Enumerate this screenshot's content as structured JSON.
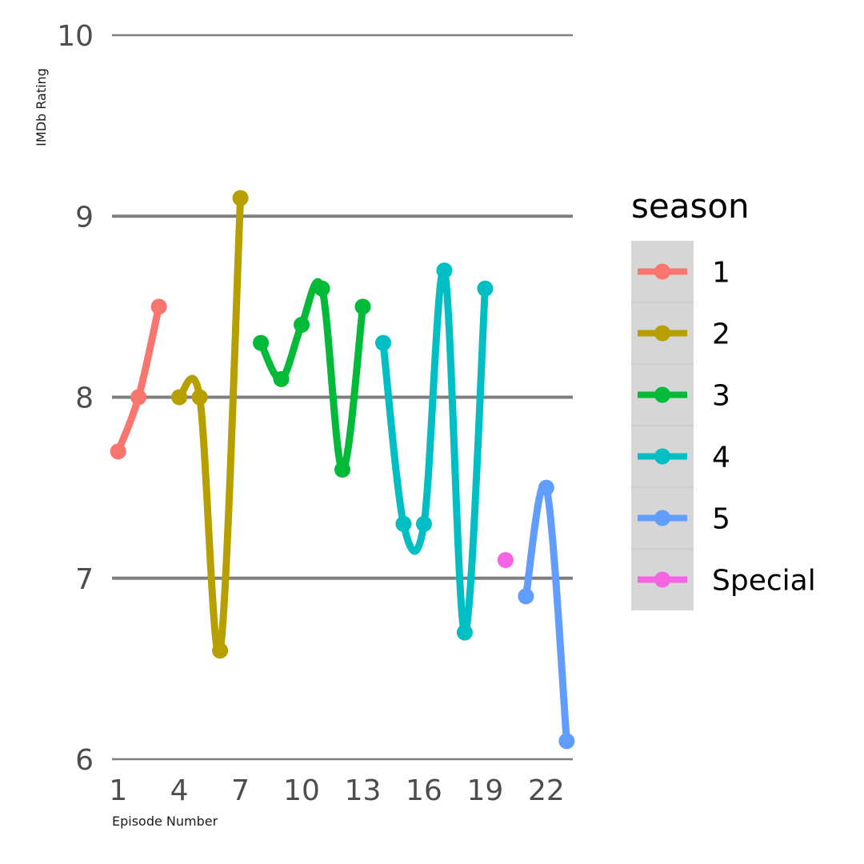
{
  "chart_data": {
    "type": "line",
    "xlabel": "Episode Number",
    "ylabel": "IMDb Rating",
    "xlim": [
      0.7,
      23.3
    ],
    "ylim": [
      6,
      10
    ],
    "x_ticks": [
      1,
      4,
      7,
      10,
      13,
      16,
      19,
      22
    ],
    "y_ticks": [
      6,
      7,
      8,
      9,
      10
    ],
    "grid": "horizontal",
    "legend": {
      "title": "season",
      "position": "right",
      "entries": [
        "1",
        "2",
        "3",
        "4",
        "5",
        "Special"
      ]
    },
    "series": [
      {
        "name": "1",
        "color": "#F8766D",
        "points": [
          [
            1,
            7.7
          ],
          [
            2,
            8.0
          ],
          [
            3,
            8.5
          ]
        ]
      },
      {
        "name": "2",
        "color": "#B79F00",
        "points": [
          [
            4,
            8.0
          ],
          [
            5,
            8.0
          ],
          [
            6,
            6.6
          ],
          [
            7,
            9.1
          ]
        ]
      },
      {
        "name": "3",
        "color": "#00BA38",
        "points": [
          [
            8,
            8.3
          ],
          [
            9,
            8.1
          ],
          [
            10,
            8.4
          ],
          [
            11,
            8.6
          ],
          [
            12,
            7.6
          ],
          [
            13,
            8.5
          ]
        ]
      },
      {
        "name": "4",
        "color": "#00BFC4",
        "points": [
          [
            14,
            8.3
          ],
          [
            15,
            7.3
          ],
          [
            16,
            7.3
          ],
          [
            17,
            8.7
          ],
          [
            18,
            6.7
          ],
          [
            19,
            8.6
          ]
        ]
      },
      {
        "name": "5",
        "color": "#619CFF",
        "points": [
          [
            21,
            6.9
          ],
          [
            22,
            7.5
          ],
          [
            23,
            6.1
          ]
        ]
      },
      {
        "name": "Special",
        "color": "#F564E3",
        "points": [
          [
            20,
            7.1
          ]
        ]
      }
    ]
  }
}
